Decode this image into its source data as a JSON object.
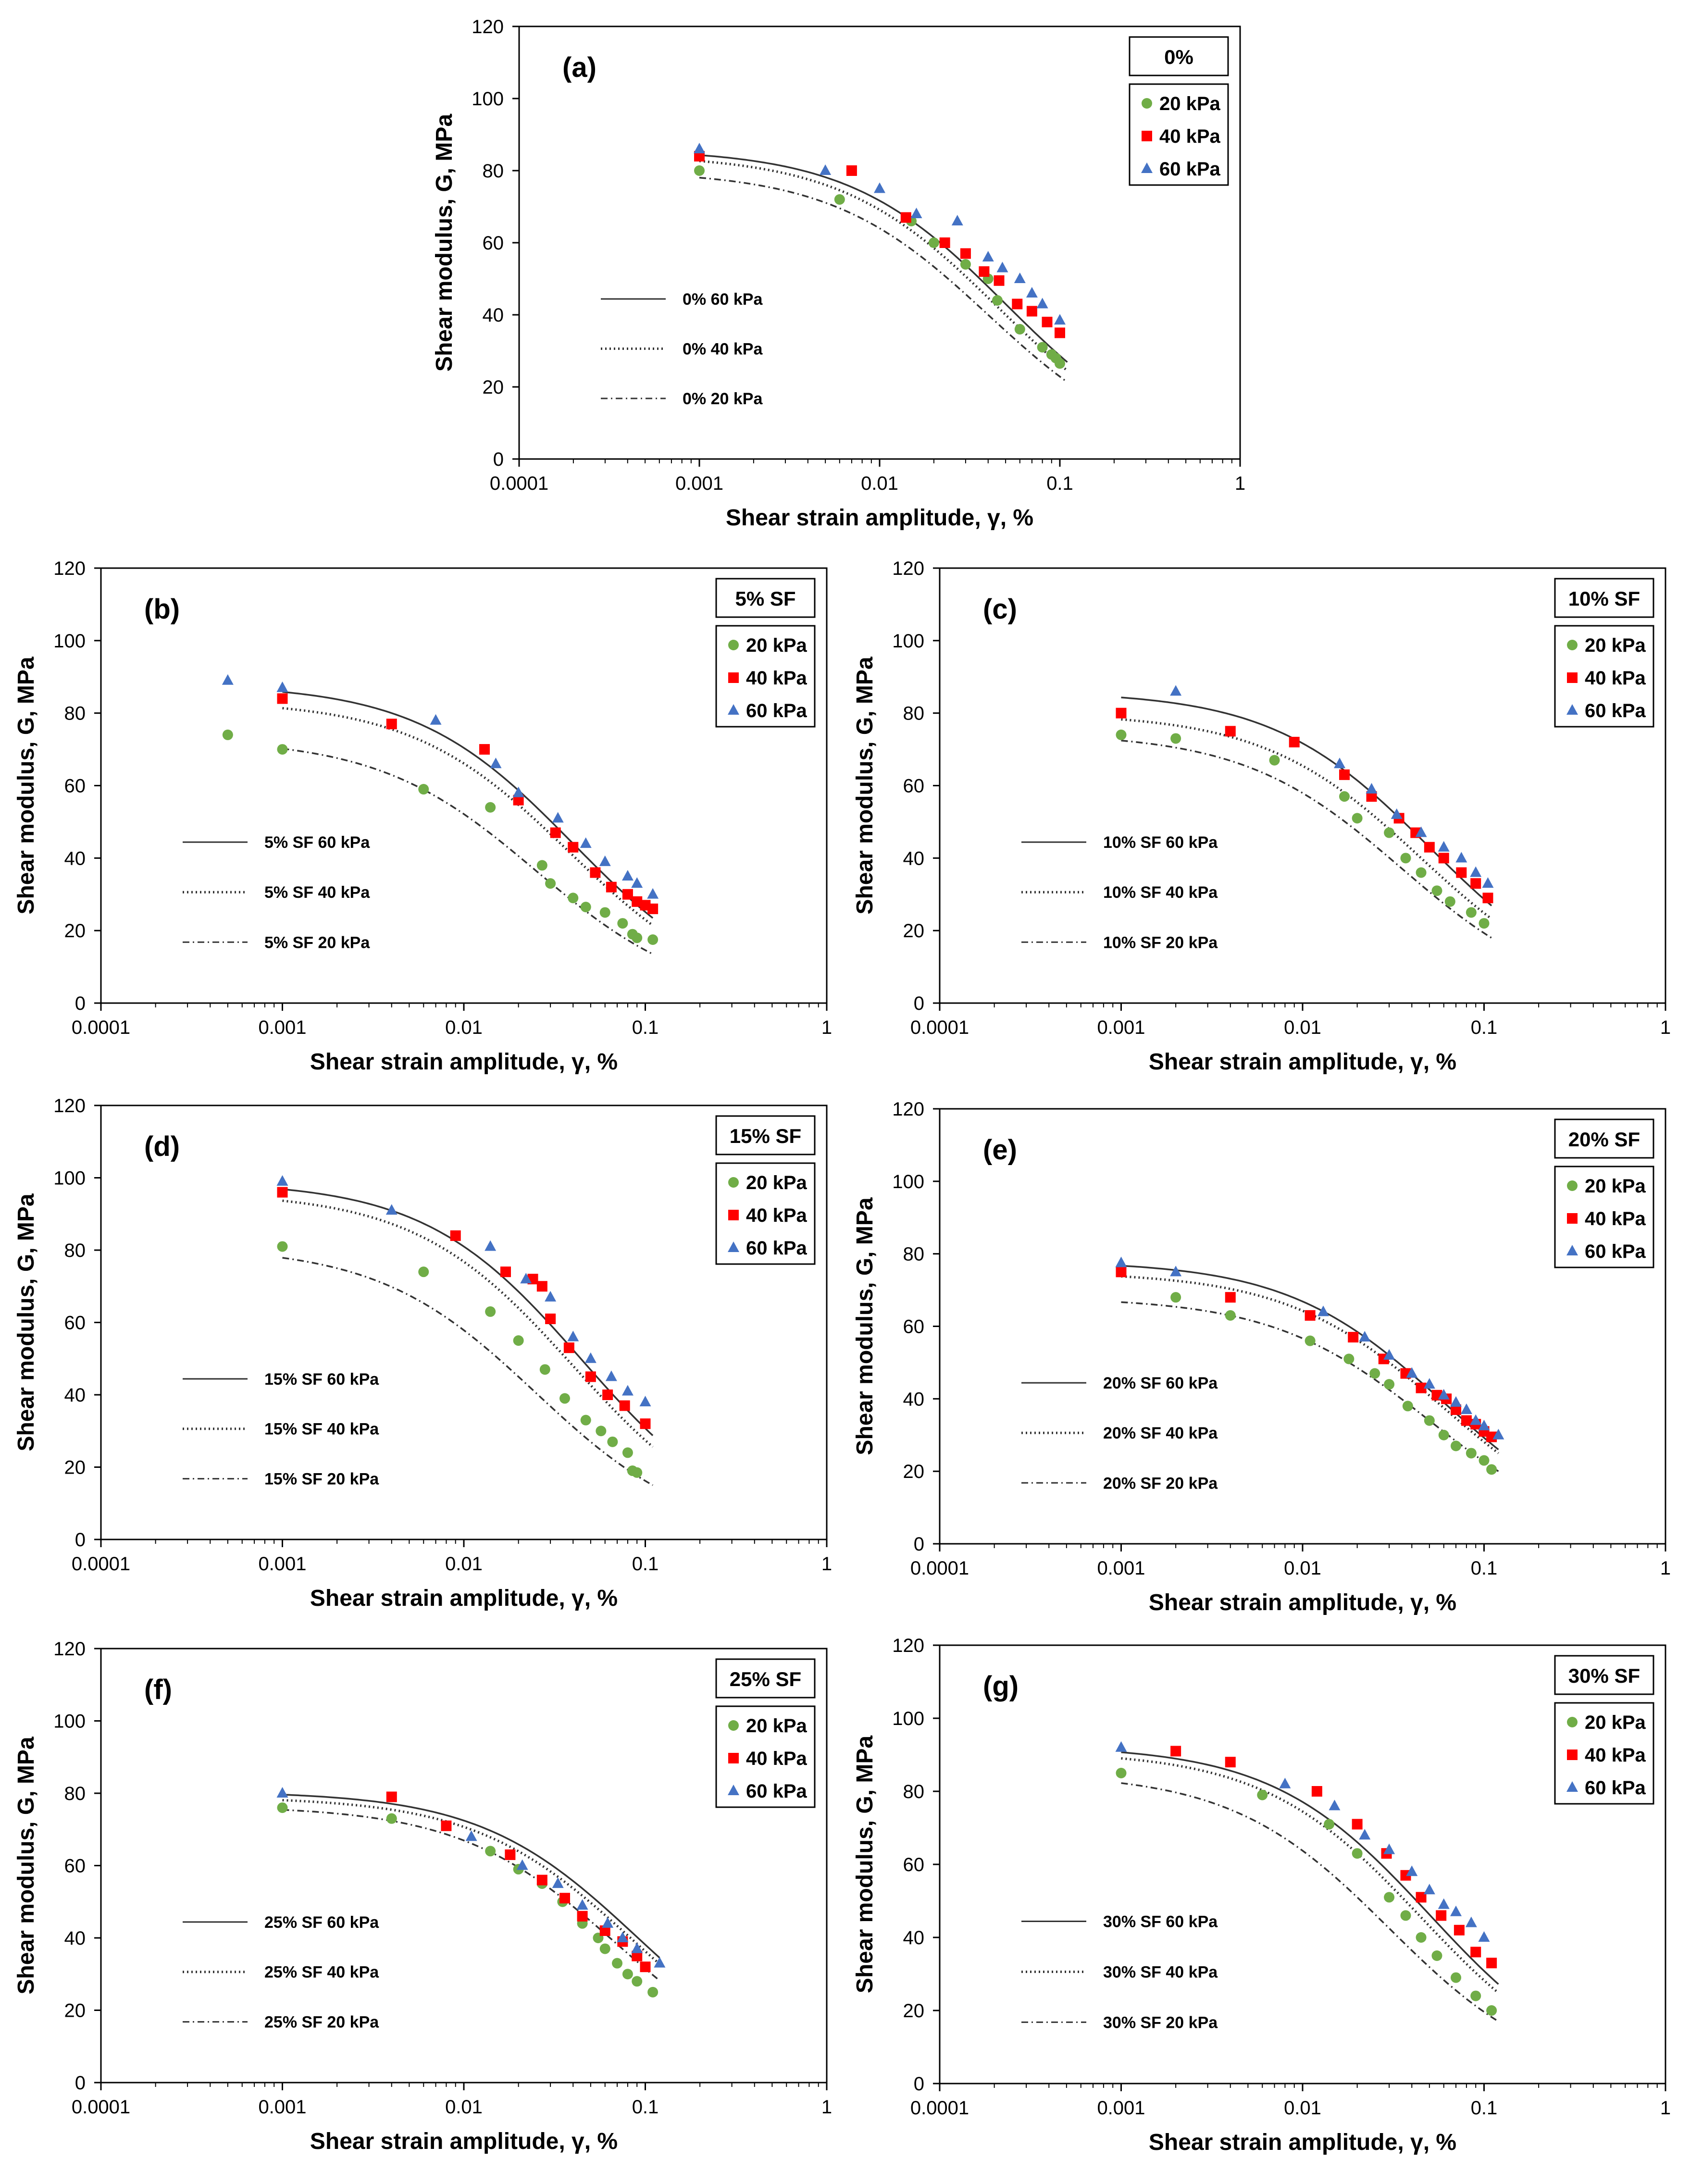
{
  "figure": {
    "x_label": "Shear strain amplitude, γ, %",
    "y_label": "Shear modulus, G, MPa",
    "x_ticks": [
      "0.0001",
      "0.001",
      "0.01",
      "0.1",
      "1"
    ],
    "y_ticks": [
      "0",
      "20",
      "40",
      "60",
      "80",
      "100",
      "120"
    ],
    "legend_entries": [
      "20 kPa",
      "40 kPa",
      "60 kPa"
    ]
  },
  "colors": {
    "p20": "#70ad47",
    "p40": "#ff0000",
    "p60": "#4472c4",
    "fit": "#333333",
    "axis": "#000000"
  },
  "chart_data": [
    {
      "type": "scatter",
      "panel": "(a)",
      "title": "0%",
      "xlabel": "Shear strain amplitude, γ, %",
      "ylabel": "Shear modulus, G, MPa",
      "xscale": "log",
      "xlim": [
        0.0001,
        1
      ],
      "ylim": [
        0,
        120
      ],
      "series": [
        {
          "name": "20 kPa",
          "x": [
            0.001,
            0.006,
            0.015,
            0.02,
            0.03,
            0.04,
            0.045,
            0.06,
            0.08,
            0.09,
            0.095,
            0.1
          ],
          "y": [
            80,
            72,
            66,
            60,
            54,
            50,
            44,
            36,
            31,
            29,
            28,
            26.5
          ]
        },
        {
          "name": "40 kPa",
          "x": [
            0.001,
            0.007,
            0.014,
            0.023,
            0.03,
            0.038,
            0.046,
            0.058,
            0.07,
            0.085,
            0.1
          ],
          "y": [
            84,
            80,
            67,
            60,
            57,
            52,
            49.5,
            43,
            41,
            38,
            35
          ]
        },
        {
          "name": "60 kPa",
          "x": [
            0.001,
            0.005,
            0.01,
            0.016,
            0.027,
            0.04,
            0.048,
            0.06,
            0.07,
            0.08,
            0.1
          ],
          "y": [
            86,
            80,
            75,
            68,
            66,
            56,
            53,
            50,
            46,
            43,
            38.5
          ]
        }
      ],
      "fits": [
        {
          "label": "0% 60 kPa",
          "style": "solid",
          "G0": 86,
          "gr": 0.05,
          "xmax": 0.11
        },
        {
          "label": "0% 40 kPa",
          "style": "dotted",
          "G0": 84.5,
          "gr": 0.045,
          "xmax": 0.11
        },
        {
          "label": "0% 20 kPa",
          "style": "dashdot",
          "G0": 80,
          "gr": 0.04,
          "xmax": 0.11
        }
      ]
    },
    {
      "type": "scatter",
      "panel": "(b)",
      "title": "5% SF",
      "xlabel": "Shear strain amplitude, γ, %",
      "ylabel": "Shear modulus, G, MPa",
      "xscale": "log",
      "xlim": [
        0.0001,
        1
      ],
      "ylim": [
        0,
        120
      ],
      "series": [
        {
          "name": "20 kPa",
          "x": [
            0.0005,
            0.001,
            0.006,
            0.014,
            0.027,
            0.03,
            0.04,
            0.047,
            0.06,
            0.075,
            0.085,
            0.09,
            0.11
          ],
          "y": [
            74,
            70,
            59,
            54,
            38,
            33,
            29,
            26.5,
            25,
            22,
            19,
            18,
            17.5
          ]
        },
        {
          "name": "40 kPa",
          "x": [
            0.001,
            0.004,
            0.013,
            0.02,
            0.032,
            0.04,
            0.053,
            0.065,
            0.08,
            0.09,
            0.1,
            0.11
          ],
          "y": [
            84,
            77,
            70,
            56,
            47,
            43,
            36,
            32,
            30,
            28,
            27,
            26
          ]
        },
        {
          "name": "60 kPa",
          "x": [
            0.0005,
            0.001,
            0.007,
            0.015,
            0.02,
            0.033,
            0.047,
            0.06,
            0.08,
            0.09,
            0.11
          ],
          "y": [
            89,
            87,
            78,
            66,
            58,
            51,
            44,
            39,
            35,
            33,
            30
          ]
        }
      ],
      "fits": [
        {
          "label": "5% SF 60 kPa",
          "style": "solid",
          "G0": 88,
          "gr": 0.04,
          "xmax": 0.11
        },
        {
          "label": "5% SF 40 kPa",
          "style": "dotted",
          "G0": 83.5,
          "gr": 0.038,
          "xmax": 0.11
        },
        {
          "label": "5% SF 20 kPa",
          "style": "dashdot",
          "G0": 73,
          "gr": 0.025,
          "xmax": 0.11
        }
      ]
    },
    {
      "type": "scatter",
      "panel": "(c)",
      "title": "10% SF",
      "xlabel": "Shear strain amplitude, γ, %",
      "ylabel": "Shear modulus, G, MPa",
      "xscale": "log",
      "xlim": [
        0.0001,
        1
      ],
      "ylim": [
        0,
        120
      ],
      "series": [
        {
          "name": "20 kPa",
          "x": [
            0.001,
            0.002,
            0.007,
            0.017,
            0.02,
            0.03,
            0.037,
            0.045,
            0.055,
            0.065,
            0.085,
            0.1
          ],
          "y": [
            74,
            73,
            67,
            57,
            51,
            47,
            40,
            36,
            31,
            28,
            25,
            22
          ]
        },
        {
          "name": "40 kPa",
          "x": [
            0.001,
            0.004,
            0.009,
            0.017,
            0.024,
            0.034,
            0.042,
            0.05,
            0.06,
            0.075,
            0.09,
            0.105
          ],
          "y": [
            80,
            75,
            72,
            63,
            57,
            51,
            47,
            43,
            40,
            36,
            33,
            29
          ]
        },
        {
          "name": "60 kPa",
          "x": [
            0.002,
            0.016,
            0.024,
            0.033,
            0.045,
            0.06,
            0.075,
            0.09,
            0.105
          ],
          "y": [
            86,
            66,
            59,
            52,
            47,
            43,
            40,
            36,
            33
          ]
        }
      ],
      "fits": [
        {
          "label": "10% SF 60 kPa",
          "style": "solid",
          "G0": 86,
          "gr": 0.05,
          "xmax": 0.11
        },
        {
          "label": "10% SF 40 kPa",
          "style": "dotted",
          "G0": 80,
          "gr": 0.045,
          "xmax": 0.11
        },
        {
          "label": "10% SF 20 kPa",
          "style": "dashdot",
          "G0": 74.5,
          "gr": 0.035,
          "xmax": 0.11
        }
      ]
    },
    {
      "type": "scatter",
      "panel": "(d)",
      "title": "15% SF",
      "xlabel": "Shear strain amplitude, γ, %",
      "ylabel": "Shear modulus, G, MPa",
      "xscale": "log",
      "xlim": [
        0.0001,
        1
      ],
      "ylim": [
        0,
        120
      ],
      "series": [
        {
          "name": "20 kPa",
          "x": [
            0.001,
            0.006,
            0.014,
            0.02,
            0.028,
            0.036,
            0.047,
            0.057,
            0.066,
            0.08,
            0.085,
            0.09
          ],
          "y": [
            81,
            74,
            63,
            55,
            47,
            39,
            33,
            30,
            27,
            24,
            19,
            18.5
          ]
        },
        {
          "name": "40 kPa",
          "x": [
            0.001,
            0.009,
            0.017,
            0.024,
            0.027,
            0.03,
            0.038,
            0.05,
            0.062,
            0.077,
            0.1
          ],
          "y": [
            96,
            84,
            74,
            72,
            70,
            61,
            53,
            45,
            40,
            37,
            32
          ]
        },
        {
          "name": "60 kPa",
          "x": [
            0.001,
            0.004,
            0.014,
            0.022,
            0.03,
            0.04,
            0.05,
            0.065,
            0.08,
            0.1
          ],
          "y": [
            99,
            91,
            81,
            72,
            67,
            56,
            50,
            45,
            41,
            38
          ]
        }
      ],
      "fits": [
        {
          "label": "15% SF 60 kPa",
          "style": "solid",
          "G0": 99,
          "gr": 0.045,
          "xmax": 0.11
        },
        {
          "label": "15% SF 40 kPa",
          "style": "dotted",
          "G0": 96,
          "gr": 0.04,
          "xmax": 0.11
        },
        {
          "label": "15% SF 20 kPa",
          "style": "dashdot",
          "G0": 81,
          "gr": 0.025,
          "xmax": 0.11
        }
      ]
    },
    {
      "type": "scatter",
      "panel": "(e)",
      "title": "20% SF",
      "xlabel": "Shear strain amplitude, γ, %",
      "ylabel": "Shear modulus, G, MPa",
      "xscale": "log",
      "xlim": [
        0.0001,
        1
      ],
      "ylim": [
        0,
        120
      ],
      "series": [
        {
          "name": "20 kPa",
          "x": [
            0.002,
            0.004,
            0.011,
            0.018,
            0.025,
            0.03,
            0.038,
            0.05,
            0.06,
            0.07,
            0.085,
            0.1,
            0.11
          ],
          "y": [
            68,
            63,
            56,
            51,
            47,
            44,
            38,
            34,
            30,
            27,
            25,
            23,
            20.5
          ]
        },
        {
          "name": "40 kPa",
          "x": [
            0.001,
            0.004,
            0.011,
            0.019,
            0.028,
            0.037,
            0.045,
            0.055,
            0.062,
            0.07,
            0.08,
            0.09,
            0.1,
            0.11
          ],
          "y": [
            75,
            68,
            63,
            57,
            51,
            47,
            43,
            41,
            40,
            37,
            34,
            33,
            31,
            29.5
          ]
        },
        {
          "name": "60 kPa",
          "x": [
            0.001,
            0.002,
            0.013,
            0.022,
            0.03,
            0.04,
            0.05,
            0.06,
            0.07,
            0.08,
            0.09,
            0.1,
            0.12
          ],
          "y": [
            77.5,
            75,
            64,
            57,
            52,
            47,
            44,
            41,
            39,
            37,
            34,
            32.5,
            30
          ]
        }
      ],
      "fits": [
        {
          "label": "20% SF 60 kPa",
          "style": "solid",
          "G0": 78,
          "gr": 0.06,
          "xmax": 0.12
        },
        {
          "label": "20% SF 40 kPa",
          "style": "dotted",
          "G0": 75,
          "gr": 0.06,
          "xmax": 0.12
        },
        {
          "label": "20% SF 20 kPa",
          "style": "dashdot",
          "G0": 68,
          "gr": 0.05,
          "xmax": 0.12
        }
      ]
    },
    {
      "type": "scatter",
      "panel": "(f)",
      "title": "25% SF",
      "xlabel": "Shear strain amplitude, γ, %",
      "ylabel": "Shear modulus, G, MPa",
      "xscale": "log",
      "xlim": [
        0.0001,
        1
      ],
      "ylim": [
        0,
        120
      ],
      "series": [
        {
          "name": "20 kPa",
          "x": [
            0.001,
            0.004,
            0.014,
            0.02,
            0.027,
            0.035,
            0.045,
            0.055,
            0.06,
            0.07,
            0.08,
            0.09,
            0.11
          ],
          "y": [
            76,
            73,
            64,
            59,
            55,
            50,
            44,
            40,
            37,
            33,
            30,
            28,
            25
          ]
        },
        {
          "name": "40 kPa",
          "x": [
            0.004,
            0.008,
            0.018,
            0.027,
            0.036,
            0.045,
            0.06,
            0.075,
            0.09,
            0.1
          ],
          "y": [
            79,
            71,
            63,
            56,
            51,
            46,
            42,
            39,
            35,
            32
          ]
        },
        {
          "name": "60 kPa",
          "x": [
            0.001,
            0.011,
            0.021,
            0.033,
            0.045,
            0.062,
            0.075,
            0.09,
            0.12
          ],
          "y": [
            80,
            68,
            60,
            55,
            49,
            44,
            40,
            37,
            33
          ]
        }
      ],
      "fits": [
        {
          "label": "25% SF 60 kPa",
          "style": "solid",
          "G0": 80.5,
          "gr": 0.09,
          "xmax": 0.12
        },
        {
          "label": "25% SF 40 kPa",
          "style": "dotted",
          "G0": 79,
          "gr": 0.085,
          "xmax": 0.12
        },
        {
          "label": "25% SF 20 kPa",
          "style": "dashdot",
          "G0": 76.5,
          "gr": 0.07,
          "xmax": 0.12
        }
      ]
    },
    {
      "type": "scatter",
      "panel": "(g)",
      "title": "30% SF",
      "xlabel": "Shear strain amplitude, γ, %",
      "ylabel": "Shear modulus, G, MPa",
      "xscale": "log",
      "xlim": [
        0.0001,
        1
      ],
      "ylim": [
        0,
        120
      ],
      "series": [
        {
          "name": "20 kPa",
          "x": [
            0.001,
            0.006,
            0.014,
            0.02,
            0.03,
            0.037,
            0.045,
            0.055,
            0.07,
            0.09,
            0.11
          ],
          "y": [
            85,
            79,
            71,
            63,
            51,
            46,
            40,
            35,
            29,
            24,
            20
          ]
        },
        {
          "name": "40 kPa",
          "x": [
            0.002,
            0.004,
            0.012,
            0.02,
            0.029,
            0.037,
            0.045,
            0.058,
            0.073,
            0.09,
            0.11
          ],
          "y": [
            91,
            88,
            80,
            71,
            63,
            57,
            51,
            46,
            42,
            36,
            33
          ]
        },
        {
          "name": "60 kPa",
          "x": [
            0.001,
            0.008,
            0.015,
            0.022,
            0.03,
            0.04,
            0.05,
            0.06,
            0.07,
            0.085,
            0.1
          ],
          "y": [
            92,
            82,
            76,
            68,
            64,
            58,
            53,
            49,
            47,
            44,
            40
          ]
        }
      ],
      "fits": [
        {
          "label": "30% SF 60 kPa",
          "style": "solid",
          "G0": 92.5,
          "gr": 0.05,
          "xmax": 0.12
        },
        {
          "label": "30% SF 40 kPa",
          "style": "dotted",
          "G0": 91,
          "gr": 0.045,
          "xmax": 0.12
        },
        {
          "label": "30% SF 20 kPa",
          "style": "dashdot",
          "G0": 85,
          "gr": 0.03,
          "xmax": 0.12
        }
      ]
    }
  ]
}
